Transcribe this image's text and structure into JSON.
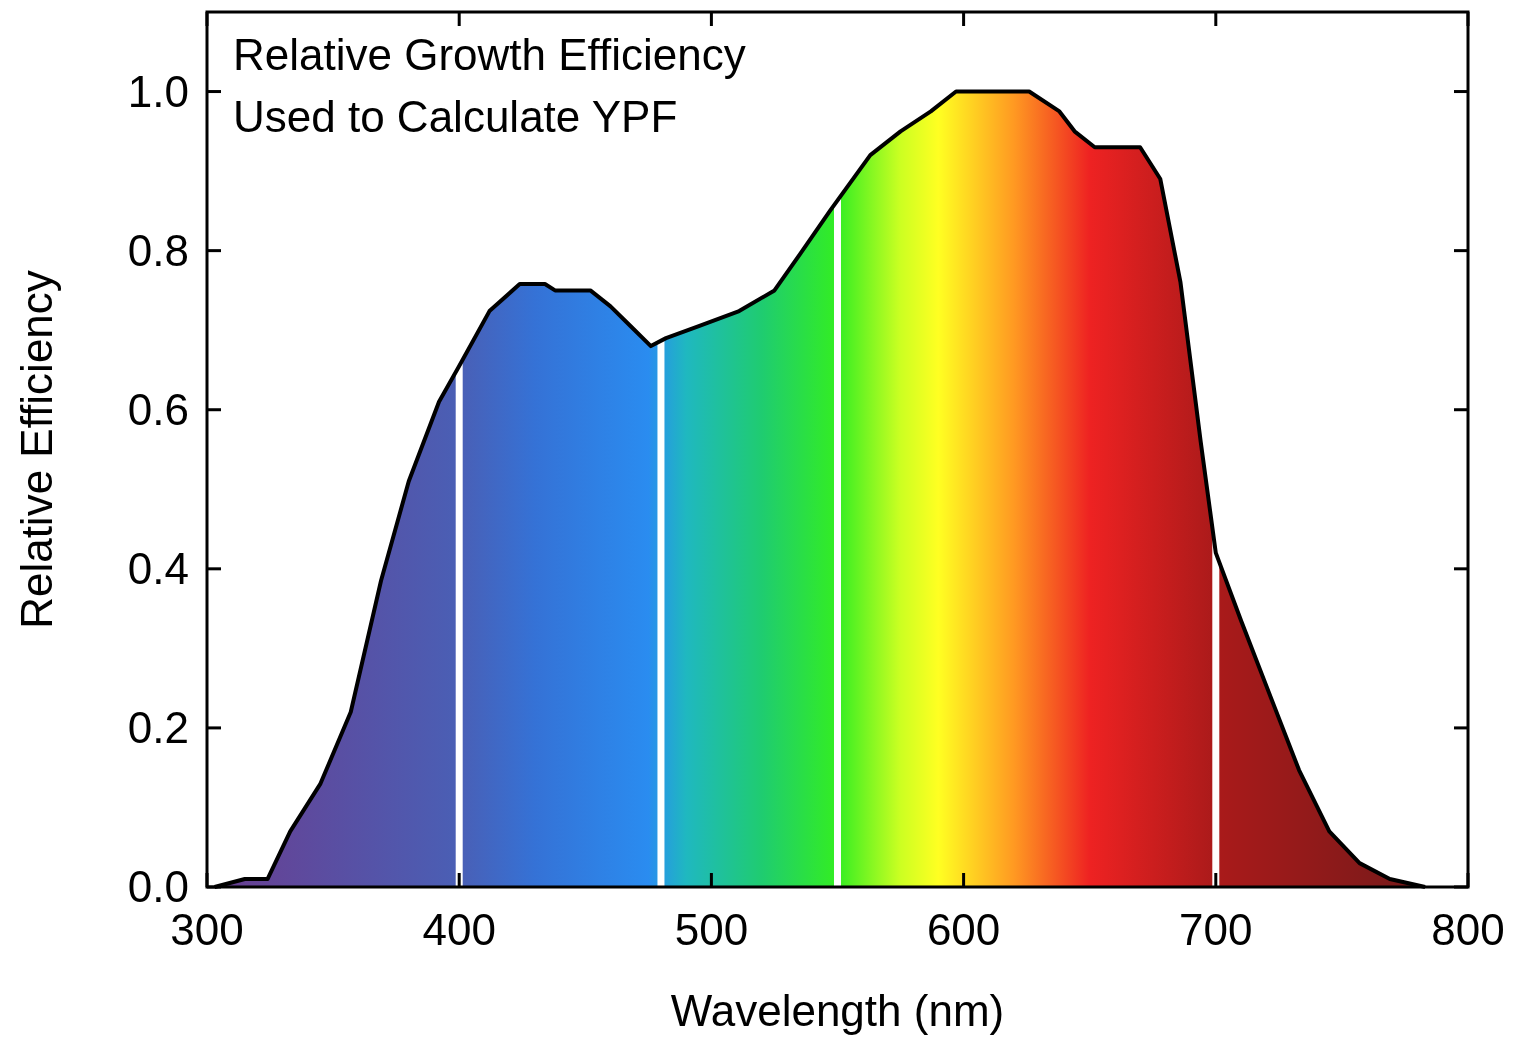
{
  "chart_data": {
    "type": "area",
    "xlabel": "Wavelength (nm)",
    "ylabel": "Relative Efficiency",
    "annotations": [
      "Relative Growth Efficiency",
      "Used to Calculate YPF"
    ],
    "xlim": [
      300,
      800
    ],
    "xticks": [
      300,
      400,
      500,
      600,
      700,
      800
    ],
    "ylim": [
      0,
      1.1
    ],
    "yticks": [
      {
        "value": 0,
        "label": "0.0"
      },
      0.2,
      0.4,
      0.6,
      0.8,
      {
        "value": 1,
        "label": "1.0"
      }
    ],
    "grid": false,
    "ref_lines": [
      {
        "axis": "x",
        "value": 400,
        "color": "#ffffff"
      },
      {
        "axis": "x",
        "value": 480,
        "color": "#ffffff"
      },
      {
        "axis": "x",
        "value": 550,
        "color": "#ffffff"
      },
      {
        "axis": "x",
        "value": 700,
        "color": "#ffffff"
      }
    ],
    "series": [
      {
        "color": "#000000",
        "x": [
          303,
          315,
          324,
          333,
          345,
          357,
          369,
          380,
          392,
          400,
          412,
          424,
          434,
          438,
          452,
          460,
          468,
          476,
          482,
          495,
          511,
          525,
          535,
          547,
          563,
          575,
          587,
          597,
          626,
          638,
          644,
          652,
          670,
          678,
          686,
          694,
          700,
          710,
          721,
          733,
          745,
          757,
          769,
          783
        ],
        "values": [
          0,
          0.01,
          0.01,
          0.07,
          0.13,
          0.22,
          0.385,
          0.51,
          0.61,
          0.655,
          0.724,
          0.758,
          0.758,
          0.75,
          0.75,
          0.73,
          0.705,
          0.68,
          0.69,
          0.705,
          0.724,
          0.75,
          0.795,
          0.85,
          0.92,
          0.95,
          0.975,
          1.0,
          1.0,
          0.975,
          0.95,
          0.93,
          0.93,
          0.89,
          0.76,
          0.56,
          0.42,
          0.335,
          0.245,
          0.147,
          0.07,
          0.03,
          0.01,
          0
        ]
      }
    ]
  }
}
